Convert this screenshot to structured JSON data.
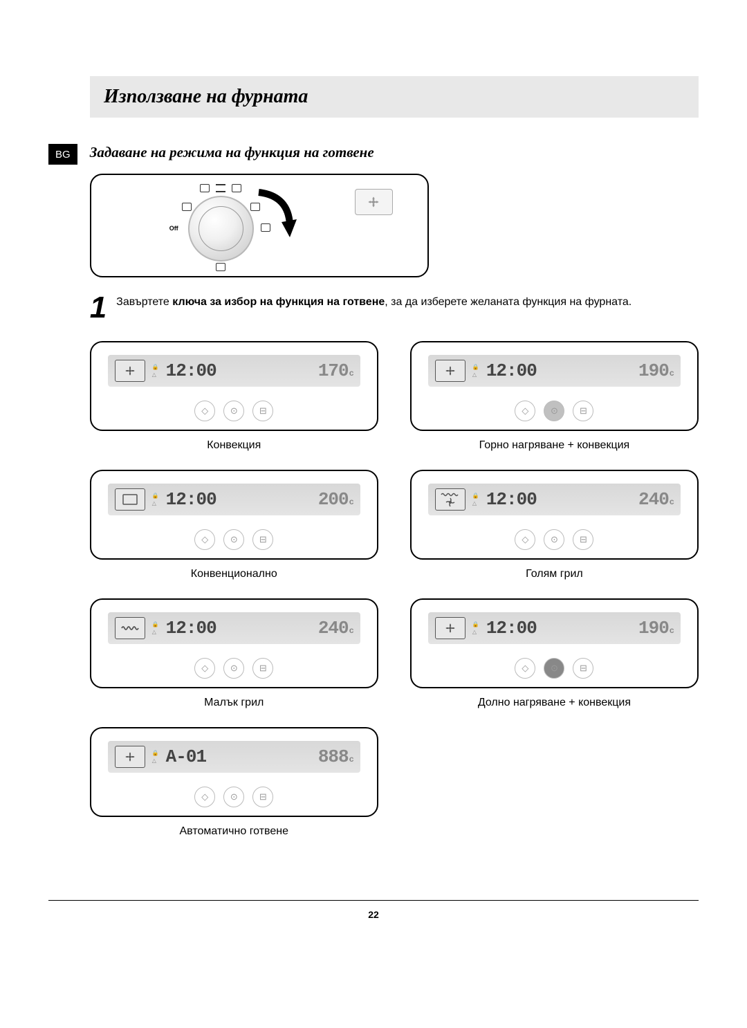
{
  "lang_badge": "BG",
  "title": "Използване на фурната",
  "subtitle": "Задаване на режима на функция на готвене",
  "dial": {
    "off_label": "Off"
  },
  "step": {
    "number": "1",
    "text_before": "Завъртете ",
    "text_bold": "ключа за избор на функция на готвене",
    "text_after": ", за да изберете желаната функция на фурната."
  },
  "modes": [
    {
      "time": "12:00",
      "temp": "170",
      "unit": "c",
      "label": "Конвекция",
      "icon": "fan",
      "btn_filled": -1
    },
    {
      "time": "12:00",
      "temp": "190",
      "unit": "c",
      "label": "Горно нагряване + конвекция",
      "icon": "fan",
      "btn_filled": 1
    },
    {
      "time": "12:00",
      "temp": "200",
      "unit": "c",
      "label": "Конвенционално",
      "icon": "box",
      "btn_filled": -1
    },
    {
      "time": "12:00",
      "temp": "240",
      "unit": "c",
      "label": "Голям грил",
      "icon": "grill-fan",
      "btn_filled": -1
    },
    {
      "time": "12:00",
      "temp": "240",
      "unit": "c",
      "label": "Малък грил",
      "icon": "grill",
      "btn_filled": -1
    },
    {
      "time": "12:00",
      "temp": "190",
      "unit": "c",
      "label": "Долно нагряване + конвекция",
      "icon": "fan",
      "btn_filled": 1,
      "btn_dark": true
    },
    {
      "time": "A-01",
      "temp": "888",
      "unit": "c",
      "label": "Автоматично готвене",
      "icon": "box-fan",
      "btn_filled": -1
    }
  ],
  "page_number": "22",
  "colors": {
    "title_bg": "#e8e8e8",
    "display_bg_top": "#d8d8d8",
    "display_bg_bot": "#e4e4e4",
    "seg_dark": "#444444",
    "seg_light": "#888888"
  }
}
